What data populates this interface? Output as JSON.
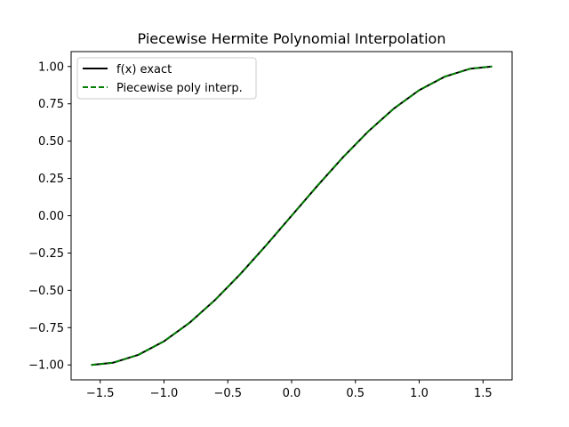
{
  "chart_data": {
    "type": "line",
    "title": "Piecewise Hermite Polynomial Interpolation",
    "xlabel": "",
    "ylabel": "",
    "xlim": [
      -1.7279,
      1.7279
    ],
    "ylim": [
      -1.1,
      1.1
    ],
    "x_ticks": [
      -1.5,
      -1.0,
      -0.5,
      0.0,
      0.5,
      1.0,
      1.5
    ],
    "x_tick_labels": [
      "−1.5",
      "−1.0",
      "−0.5",
      "0.0",
      "0.5",
      "1.0",
      "1.5"
    ],
    "y_ticks": [
      -1.0,
      -0.75,
      -0.5,
      -0.25,
      0.0,
      0.25,
      0.5,
      0.75,
      1.0
    ],
    "y_tick_labels": [
      "−1.00",
      "−0.75",
      "−0.50",
      "−0.25",
      "0.00",
      "0.25",
      "0.50",
      "0.75",
      "1.00"
    ],
    "grid": false,
    "legend_position": "upper-left",
    "series": [
      {
        "name": "f(x) exact",
        "color": "#000000",
        "style": "solid",
        "x": [
          -1.5708,
          -1.4,
          -1.2,
          -1.0,
          -0.8,
          -0.6,
          -0.4,
          -0.2,
          0.0,
          0.2,
          0.4,
          0.6,
          0.8,
          1.0,
          1.2,
          1.4,
          1.5708
        ],
        "y": [
          -1.0,
          -0.9854,
          -0.932,
          -0.8415,
          -0.7174,
          -0.5646,
          -0.3894,
          -0.1987,
          0.0,
          0.1987,
          0.3894,
          0.5646,
          0.7174,
          0.8415,
          0.932,
          0.9854,
          1.0
        ]
      },
      {
        "name": "Piecewise poly interp.",
        "color": "#008000",
        "style": "dashed",
        "x": [
          -1.5708,
          -1.4,
          -1.2,
          -1.0,
          -0.8,
          -0.6,
          -0.4,
          -0.2,
          0.0,
          0.2,
          0.4,
          0.6,
          0.8,
          1.0,
          1.2,
          1.4,
          1.5708
        ],
        "y": [
          -1.0,
          -0.9854,
          -0.932,
          -0.8415,
          -0.7174,
          -0.5646,
          -0.3894,
          -0.1987,
          0.0,
          0.1987,
          0.3894,
          0.5646,
          0.7174,
          0.8415,
          0.932,
          0.9854,
          1.0
        ]
      }
    ]
  }
}
